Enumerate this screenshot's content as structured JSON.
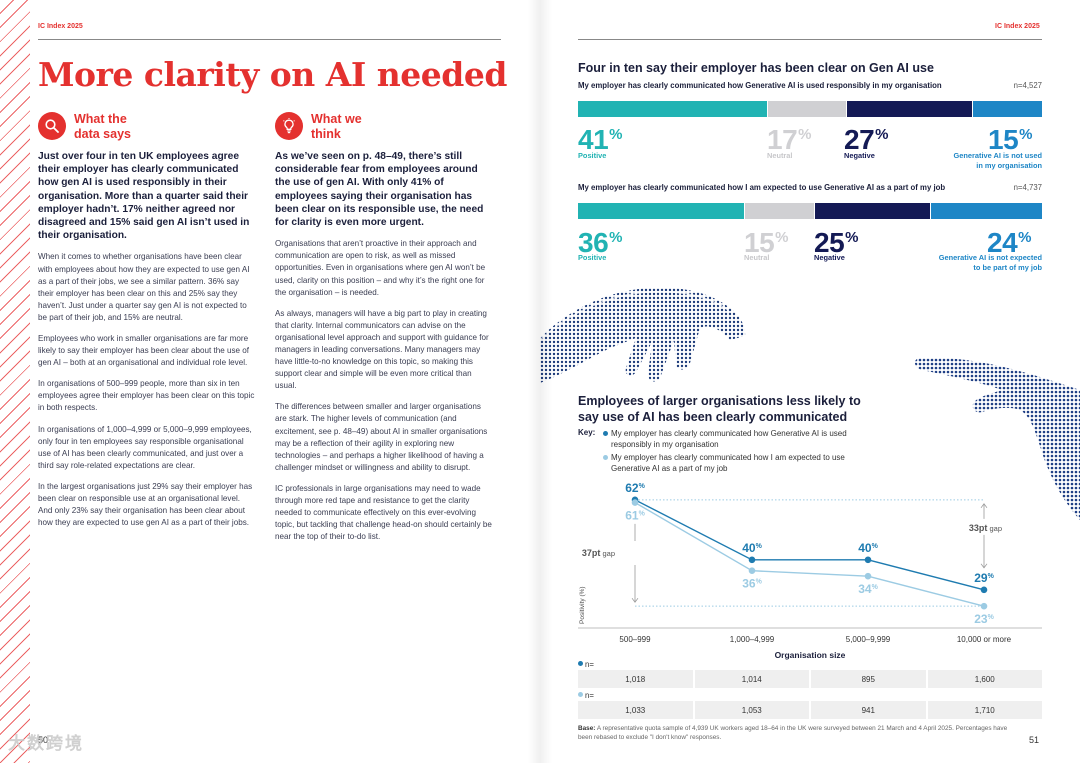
{
  "running_head": "IC Index 2025",
  "left": {
    "title": "More clarity on AI needed",
    "col1": {
      "heading": "What the data says",
      "icon": "magnifier-icon",
      "lead": "Just over four in ten UK employees agree their employer has clearly communicated how gen AI is used responsibly in their organisation. More than a quarter said their employer hadn’t. 17% neither agreed nor disagreed and 15% said gen AI isn’t used in their organisation.",
      "paragraphs": [
        "When it comes to whether organisations have been clear with employees about how they are expected to use gen AI as a part of their jobs, we see a similar pattern. 36% say their employer has been clear on this and 25% say they haven’t. Just under a quarter say gen AI is not expected to be part of their job, and 15% are neutral.",
        "Employees who work in smaller organisations are far more likely to say their employer has been clear about the use of gen AI – both at an organisational and individual role level.",
        "In organisations of 500–999 people, more than six in ten employees agree their employer has been clear on this topic in both respects.",
        "In organisations of 1,000–4,999 or 5,000–9,999 employees, only four in ten employees say responsible organisational use of AI has been clearly communicated, and just over a third say role-related expectations are clear.",
        "In the largest organisations just 29% say their employer has been clear on responsible use at an organisational level. And only 23% say their organisation has been clear about how they are expected to use gen AI as a part of their jobs."
      ]
    },
    "col2": {
      "heading": "What we think",
      "icon": "lightbulb-icon",
      "lead": "As we’ve seen on p. 48–49, there’s still considerable fear from employees around the use of gen AI. With only 41% of employees saying their organisation has been clear on its responsible use, the need for clarity is even more urgent.",
      "paragraphs": [
        "Organisations that aren’t proactive in their approach and communication are open to risk, as well as missed opportunities. Even in organisations where gen AI won’t be used, clarity on this position – and why it’s the right one for the organisation – is needed.",
        "As always, managers will have a big part to play in creating that clarity. Internal communicators can advise on the organisational level approach and support with guidance for managers in leading conversations. Many managers may have little-to-no knowledge on this topic, so making this support clear and simple will be even more critical than usual.",
        "The differences between smaller and larger organisations are stark. The higher levels of communication (and excitement, see p. 48–49) about AI in smaller organisations may be a reflection of their agility in exploring new technologies – and perhaps a higher likelihood of having a challenger mindset or willingness and ability to disrupt.",
        "IC professionals in large organisations may need to wade through more red tape and resistance to get the clarity needed to communicate effectively on this ever-evolving topic, but tackling that challenge head-on should certainly be near the top of their to-do list."
      ]
    },
    "page_number": "50",
    "watermark": "大数跨境"
  },
  "right": {
    "title": "Four in ten say their employer has been clear on Gen AI use",
    "page_number": "51",
    "colors": {
      "positive": "#21b3b3",
      "neutral": "#d0d0d3",
      "negative": "#141a55",
      "not_used": "#1e86c6",
      "series1": "#1e7bb0",
      "series2": "#9ccbe3",
      "brand_red": "#e4312f"
    },
    "questions": [
      {
        "question": "My employer has clearly communicated how Generative AI is used responsibly in my organisation",
        "n": "n=4,527",
        "segments": [
          {
            "key": "positive",
            "value": 41,
            "pct": "41",
            "label": "Positive"
          },
          {
            "key": "neutral",
            "value": 17,
            "pct": "17",
            "label": "Neutral"
          },
          {
            "key": "negative",
            "value": 27,
            "pct": "27",
            "label": "Negative"
          },
          {
            "key": "not_used",
            "value": 15,
            "pct": "15",
            "label_line1": "Generative AI is not used",
            "label_line2": "in my organisation"
          }
        ]
      },
      {
        "question": "My employer has clearly communicated how I am expected to use Generative AI as a part of my job",
        "n": "n=4,737",
        "segments": [
          {
            "key": "positive",
            "value": 36,
            "pct": "36",
            "label": "Positive"
          },
          {
            "key": "neutral",
            "value": 15,
            "pct": "15",
            "label": "Neutral"
          },
          {
            "key": "negative",
            "value": 25,
            "pct": "25",
            "label": "Negative"
          },
          {
            "key": "not_used",
            "value": 24,
            "pct": "24",
            "label_line1": "Generative AI is not expected",
            "label_line2": "to be part of my job"
          }
        ]
      }
    ],
    "percent_symbol": "%",
    "chart_title": "Employees of larger organisations less likely to say use of AI has been clearly communicated",
    "key_label": "Key:",
    "base_note_bold": "Base:",
    "base_note": " A representative quota sample of 4,939 UK workers aged 18–64 in the UK were surveyed between 21 March and 4 April 2025. Percentages have been rebased to exclude \"I don't know\" responses.",
    "n_label": "n=",
    "n_table": [
      [
        "1,018",
        "1,014",
        "895",
        "1,600"
      ],
      [
        "1,033",
        "1,053",
        "941",
        "1,710"
      ]
    ]
  },
  "chart_data": {
    "type": "line",
    "title": "Employees of larger organisations less likely to say use of AI has been clearly communicated",
    "xlabel": "Organisation size",
    "ylabel": "Positivity (%)",
    "categories": [
      "500–999",
      "1,000–4,999",
      "5,000–9,999",
      "10,000 or more"
    ],
    "series": [
      {
        "name": "My employer has clearly communicated how Generative AI is used responsibly in my organisation",
        "values": [
          62,
          40,
          40,
          29
        ]
      },
      {
        "name": "My employer has clearly communicated how I am expected to use Generative AI as a part of my job",
        "values": [
          61,
          36,
          34,
          23
        ]
      }
    ],
    "annotations": [
      {
        "text_bold": "37pt",
        "text": "gap",
        "between": [
          0,
          3
        ],
        "from": 62,
        "to": 23
      },
      {
        "text_bold": "33pt",
        "text": "gap",
        "between": [
          0,
          3
        ],
        "from": 62,
        "to": 29
      }
    ],
    "ylim": [
      15,
      70
    ]
  }
}
